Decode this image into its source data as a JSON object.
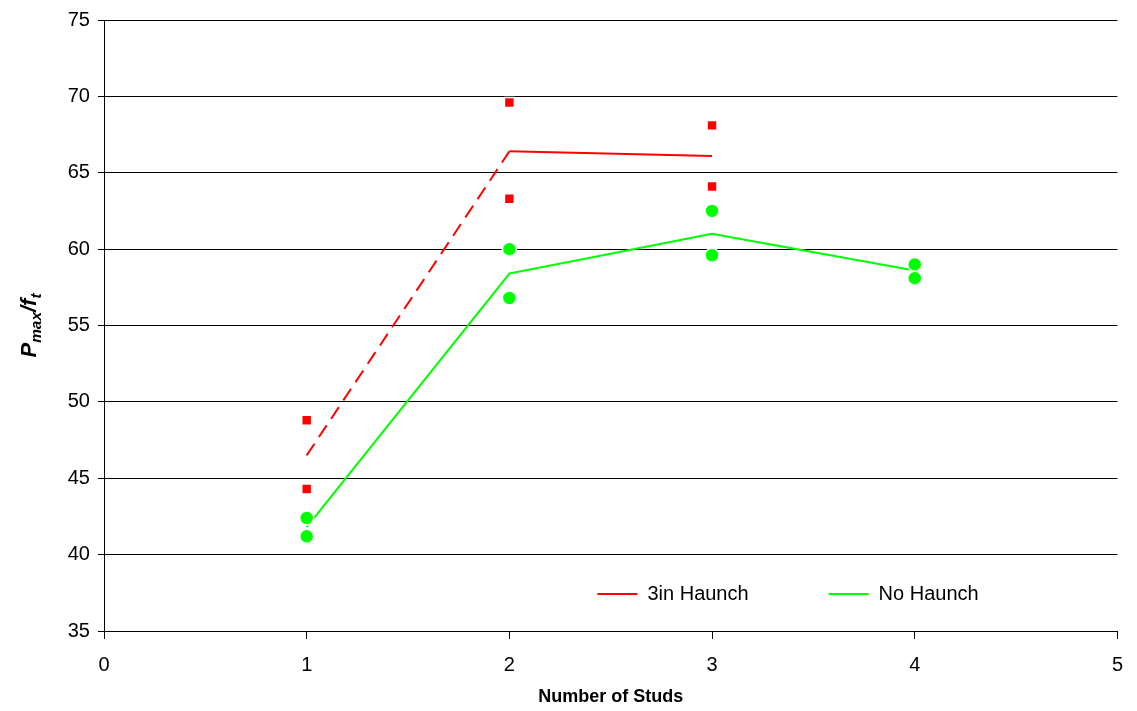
{
  "chart_data": {
    "type": "scatter",
    "xlabel": "Number of Studs",
    "ylabel": "P$_{max}$/f$_{t}$",
    "xlim": [
      0,
      5
    ],
    "xticks": [
      0,
      1,
      2,
      3,
      4,
      5
    ],
    "ylim": [
      35,
      75
    ],
    "yticks": [
      35,
      40,
      45,
      50,
      55,
      60,
      65,
      70,
      75
    ],
    "grid": "y",
    "legend": "bottom right",
    "series": [
      {
        "name": "3in Haunch",
        "type": "line",
        "color": "#ff0000",
        "marker": "none",
        "line_style": "solid",
        "x": [
          2,
          3
        ],
        "values": [
          66.4,
          66.1
        ]
      },
      {
        "name": "No Haunch",
        "type": "line",
        "color": "#00ff00",
        "marker": "none",
        "line_style": "solid",
        "x": [
          1,
          2,
          3,
          4
        ],
        "values": [
          41.8,
          58.4,
          61.0,
          58.6
        ]
      },
      {
        "type": "line",
        "color": "#ff0000",
        "marker": "none",
        "line_style": "dashed",
        "x": [
          1,
          2
        ],
        "values": [
          46.5,
          66.4
        ]
      },
      {
        "type": "scatter",
        "color": "#ff0000",
        "marker": "square",
        "x": [
          2,
          2,
          3,
          3
        ],
        "values": [
          69.6,
          63.3,
          68.1,
          64.1
        ]
      },
      {
        "type": "scatter",
        "color": "#ff0000",
        "marker": "square",
        "x": [
          1,
          1
        ],
        "values": [
          48.8,
          44.3
        ]
      },
      {
        "type": "scatter",
        "color": "#00ff00",
        "marker": "circle",
        "x": [
          1,
          1,
          2,
          2,
          3,
          3,
          4,
          4
        ],
        "values": [
          42.4,
          41.2,
          60.0,
          56.8,
          62.5,
          59.6,
          59.0,
          58.1
        ]
      }
    ]
  }
}
